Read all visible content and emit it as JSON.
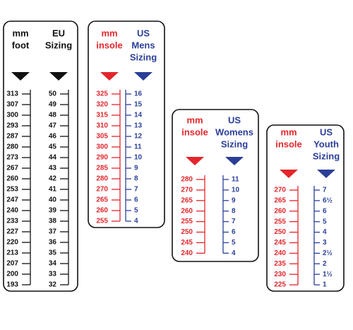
{
  "panels": [
    {
      "columns": [
        {
          "header": [
            "mm",
            "foot"
          ],
          "rows": [
            313,
            307,
            300,
            293,
            287,
            280,
            273,
            267,
            260,
            253,
            247,
            240,
            233,
            227,
            220,
            213,
            207,
            200,
            193
          ]
        },
        {
          "header": [
            "EU",
            "Sizing"
          ],
          "rows": [
            50,
            49,
            48,
            47,
            46,
            45,
            44,
            43,
            42,
            41,
            40,
            39,
            38,
            37,
            36,
            35,
            34,
            33,
            32
          ]
        }
      ]
    },
    {
      "columns": [
        {
          "header": [
            "mm",
            "insole"
          ],
          "rows": [
            325,
            320,
            315,
            310,
            305,
            300,
            290,
            285,
            280,
            270,
            265,
            260,
            255
          ]
        },
        {
          "header": [
            "US",
            "Mens",
            "Sizing"
          ],
          "rows": [
            16,
            15,
            14,
            13,
            12,
            11,
            10,
            9,
            8,
            7,
            6,
            5,
            4
          ]
        }
      ]
    },
    {
      "columns": [
        {
          "header": [
            "mm",
            "insole"
          ],
          "rows": [
            280,
            270,
            265,
            260,
            255,
            250,
            245,
            240
          ]
        },
        {
          "header": [
            "US",
            "Womens",
            "Sizing"
          ],
          "rows": [
            11,
            10,
            9,
            8,
            7,
            6,
            5,
            4
          ]
        }
      ]
    },
    {
      "columns": [
        {
          "header": [
            "mm",
            "insole"
          ],
          "rows": [
            270,
            265,
            260,
            255,
            250,
            245,
            240,
            235,
            230,
            225
          ]
        },
        {
          "header": [
            "US",
            "Youth",
            "Sizing"
          ],
          "rows": [
            7,
            "6½",
            6,
            5,
            4,
            3,
            "2½",
            2,
            "1½",
            1
          ]
        }
      ]
    }
  ]
}
